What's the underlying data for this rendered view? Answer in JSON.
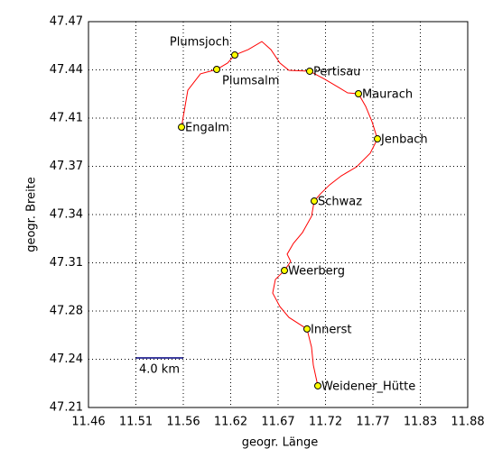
{
  "chart_data": {
    "type": "line",
    "x_label": "geogr. Länge",
    "y_label": "geogr. Breite",
    "xlim": [
      11.46,
      11.88
    ],
    "xticks": [
      11.46,
      {
        "value": 11.5125,
        "label": "11.51"
      },
      {
        "value": 11.565,
        "label": "11.56"
      },
      {
        "value": 11.6175,
        "label": "11.62"
      },
      11.67,
      {
        "value": 11.7225,
        "label": "11.72"
      },
      {
        "value": 11.775,
        "label": "11.77"
      },
      {
        "value": 11.8275,
        "label": "11.83"
      },
      11.88
    ],
    "ylim": [
      47.21,
      47.47
    ],
    "yticks": [
      47.21,
      {
        "value": 47.2425,
        "label": "47.24"
      },
      {
        "value": 47.275,
        "label": "47.28"
      },
      {
        "value": 47.3075,
        "label": "47.31"
      },
      47.34,
      {
        "value": 47.3725,
        "label": "47.37"
      },
      {
        "value": 47.405,
        "label": "47.41"
      },
      {
        "value": 47.4375,
        "label": "47.44"
      },
      47.47
    ],
    "grid": true,
    "route": {
      "color": "#ff0000",
      "x": [
        11.563,
        11.57,
        11.584,
        11.602,
        11.614,
        11.622,
        11.637,
        11.652,
        11.662,
        11.672,
        11.682,
        11.705,
        11.722,
        11.737,
        11.747,
        11.759,
        11.767,
        11.774,
        11.78,
        11.772,
        11.757,
        11.74,
        11.727,
        11.717,
        11.71,
        11.707,
        11.697,
        11.687,
        11.68,
        11.684,
        11.677,
        11.667,
        11.664,
        11.672,
        11.682,
        11.702,
        11.707,
        11.709,
        11.714
      ],
      "y": [
        47.3989,
        47.4238,
        47.4348,
        47.4378,
        47.4421,
        47.4475,
        47.4512,
        47.4566,
        47.4512,
        47.4421,
        47.4372,
        47.4366,
        47.4311,
        47.4257,
        47.422,
        47.4214,
        47.4129,
        47.4026,
        47.391,
        47.3813,
        47.3722,
        47.3661,
        47.36,
        47.354,
        47.3491,
        47.3388,
        47.3279,
        47.3206,
        47.3133,
        47.3084,
        47.3023,
        47.2963,
        47.2871,
        47.278,
        47.2707,
        47.2629,
        47.2507,
        47.2386,
        47.2246
      ]
    },
    "places": {
      "color": "#ffff00",
      "names": [
        "Plumsjoch",
        "Plumsalm",
        "Pertisau",
        "Maurach",
        "Engalm",
        "Jenbach",
        "Schwaz",
        "Weerberg",
        "Innerst",
        "Weidener_Hütte"
      ],
      "x": [
        11.622,
        11.602,
        11.705,
        11.759,
        11.563,
        11.78,
        11.71,
        11.677,
        11.702,
        11.714
      ],
      "y": [
        47.4475,
        47.4378,
        47.4366,
        47.4214,
        47.3989,
        47.391,
        47.3491,
        47.3023,
        47.2629,
        47.2246
      ]
    },
    "scale_label": "4.0 km"
  }
}
